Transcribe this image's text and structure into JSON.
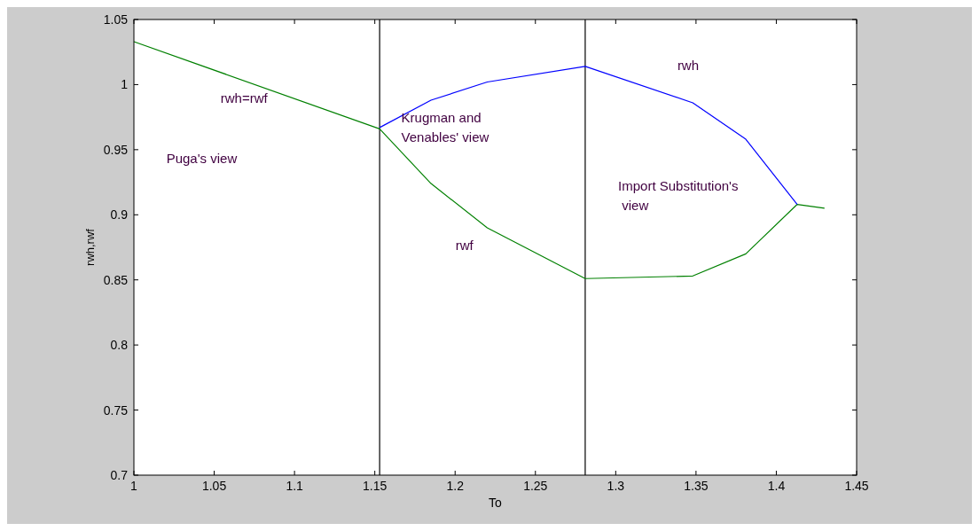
{
  "chart_data": {
    "type": "line",
    "xlabel": "To",
    "ylabel": "rwh,rwf",
    "xlim": [
      1,
      1.45
    ],
    "xticks": [
      1,
      1.05,
      1.1,
      1.15,
      1.2,
      1.25,
      1.3,
      1.35,
      1.4,
      1.45
    ],
    "ylim": [
      0.7,
      1.05
    ],
    "yticks": [
      0.7,
      0.75,
      0.8,
      0.85,
      0.9,
      0.95,
      1,
      1.05
    ],
    "grid": false,
    "marker": "none",
    "line_style": "solid",
    "series": [
      {
        "color": "#008000",
        "x": [
          1,
          1.153,
          1.185,
          1.22,
          1.281,
          1.348,
          1.381,
          1.413,
          1.43
        ],
        "values": [
          1.033,
          0.966,
          0.924,
          0.89,
          0.851,
          0.853,
          0.87,
          0.908,
          0.905
        ]
      },
      {
        "color": "#0000ff",
        "x": [
          1.153,
          1.185,
          1.22,
          1.281,
          1.348,
          1.381,
          1.413
        ],
        "values": [
          0.967,
          0.988,
          1.002,
          1.014,
          0.986,
          0.958,
          0.908
        ]
      }
    ],
    "ref_lines": [
      {
        "axis": "x",
        "value": 1.153,
        "color": "#000000"
      },
      {
        "axis": "x",
        "value": 1.281,
        "color": "#000000"
      }
    ],
    "annotations": [
      "rwh=rwf",
      "Puga's view",
      "Krugman and\nVenables' view",
      "rwf",
      "rwh",
      "Import Substitution's\n view"
    ]
  }
}
